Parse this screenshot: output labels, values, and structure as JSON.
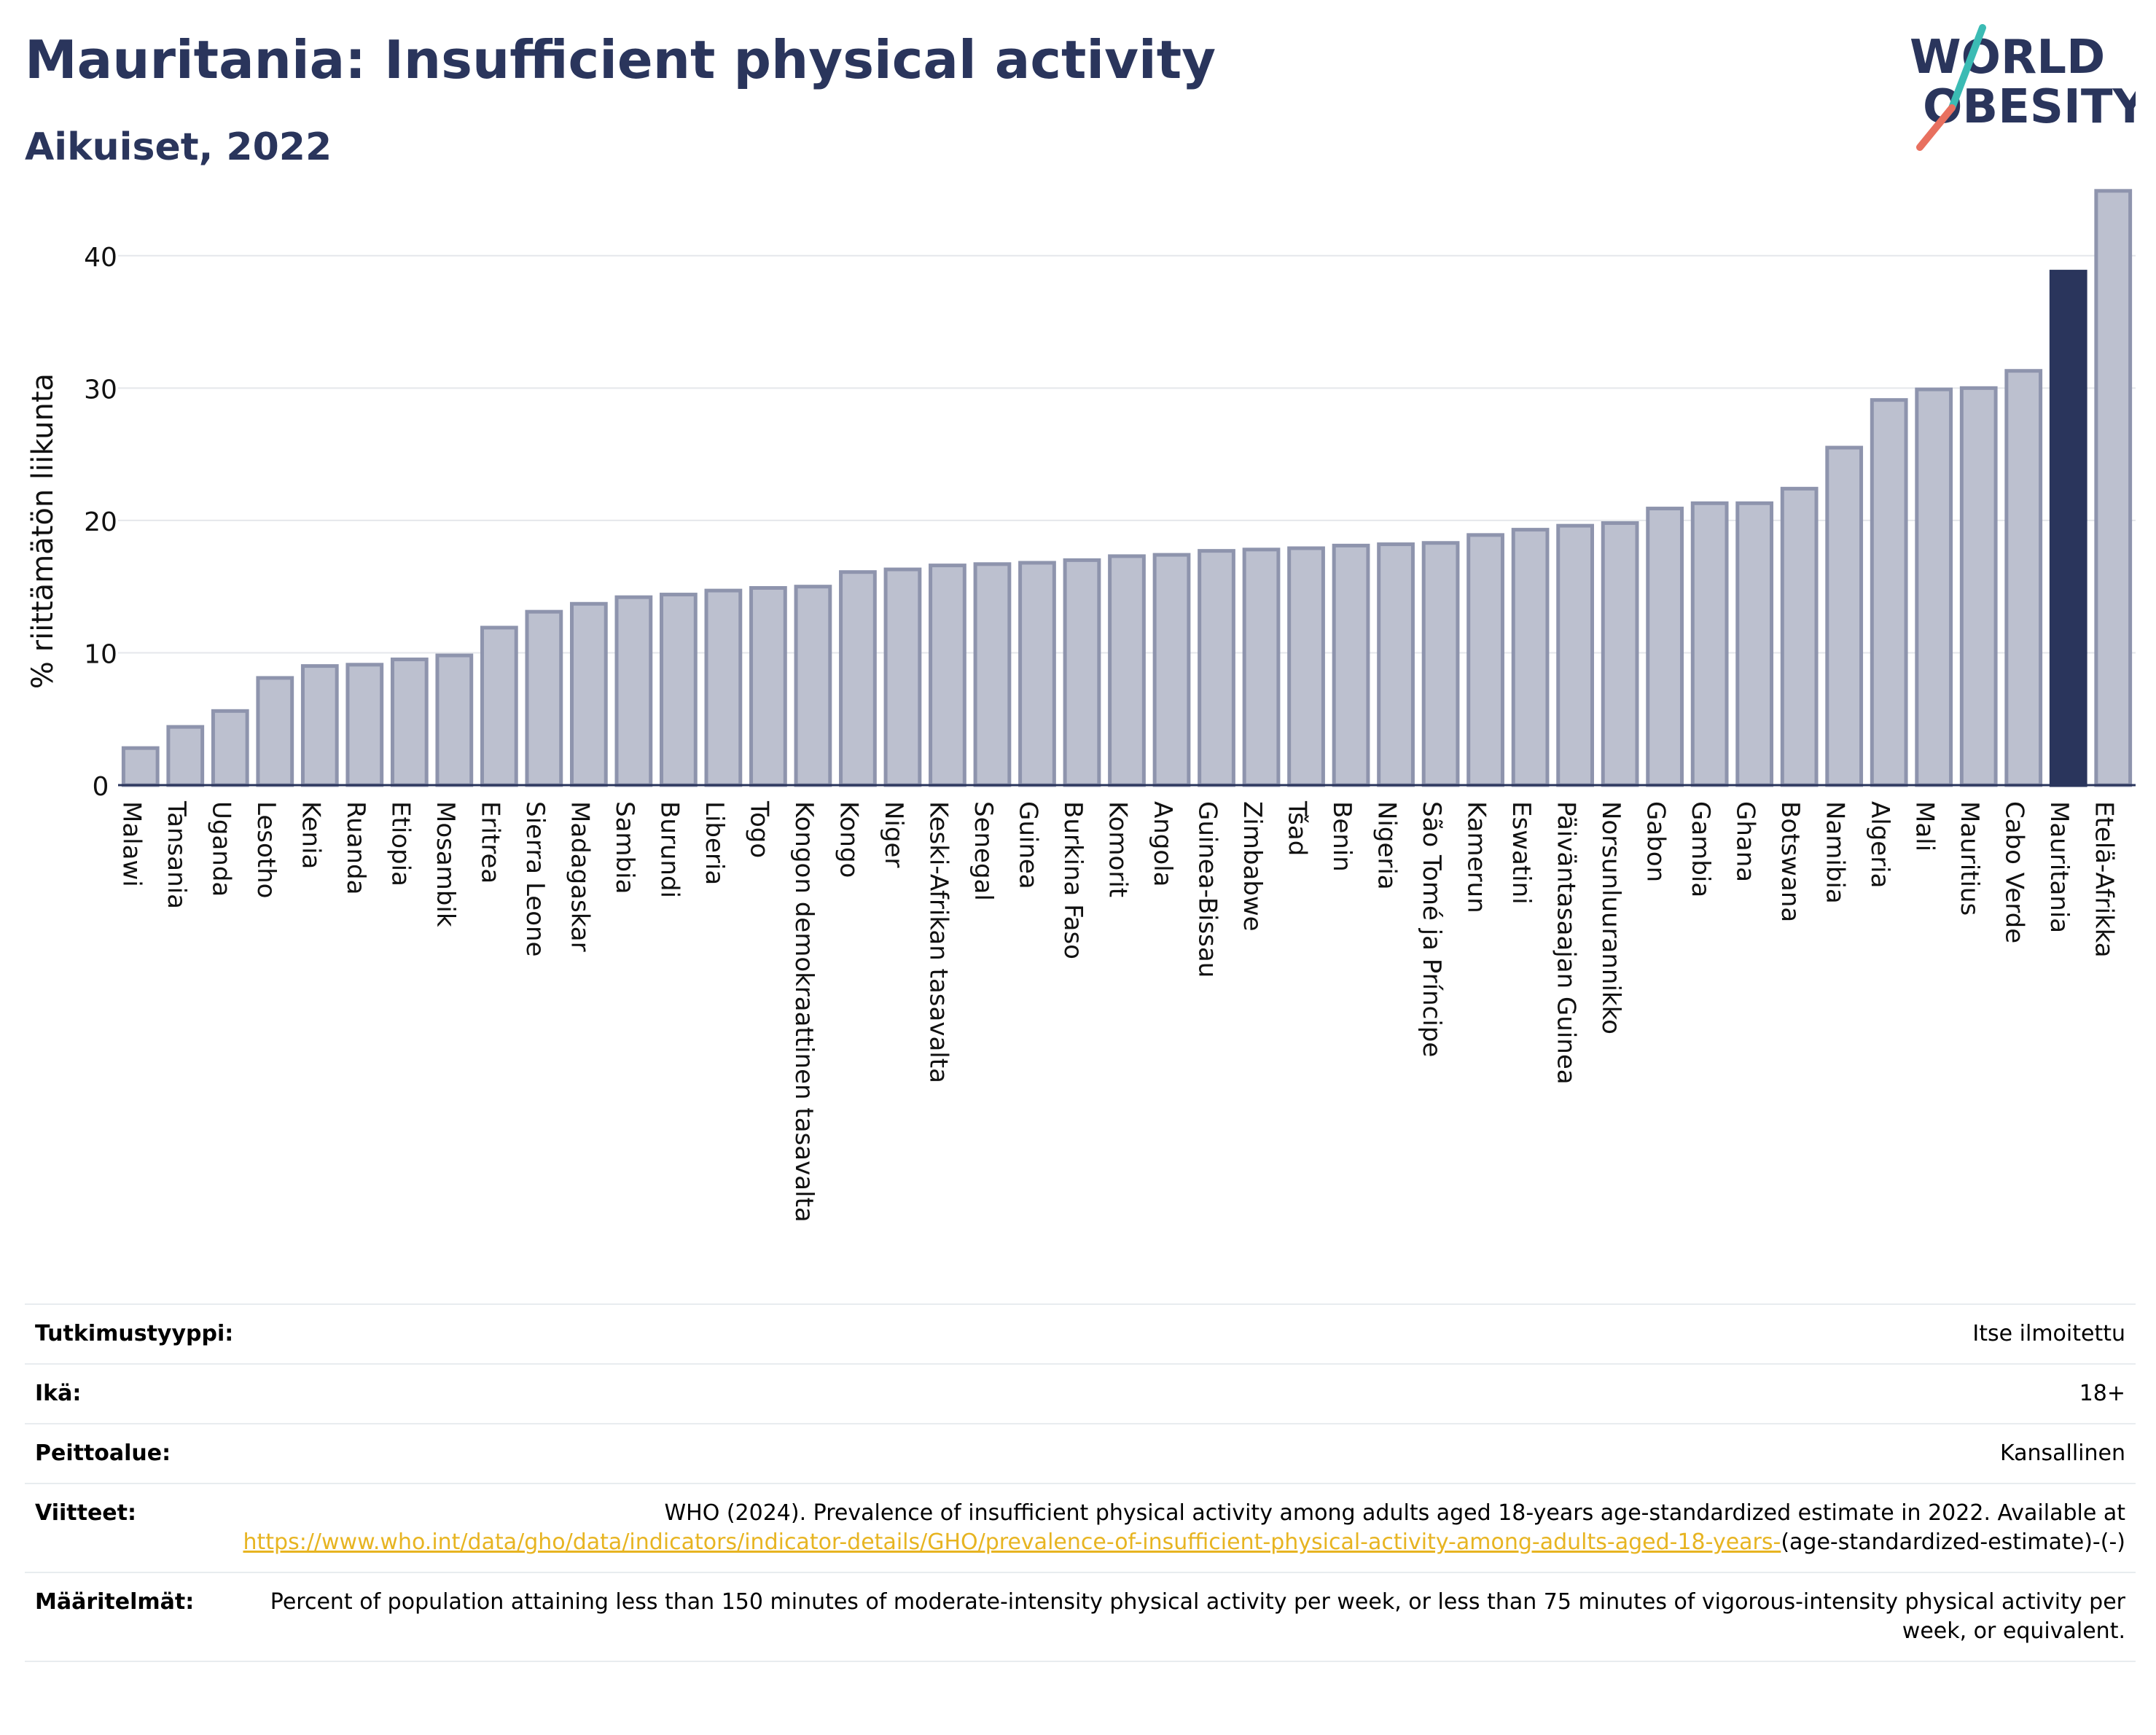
{
  "header": {
    "title": "Mauritania: Insufficient physical activity",
    "subtitle": "Aikuiset, 2022"
  },
  "logo": {
    "line1": "WORLD",
    "line2": "OBESITY"
  },
  "colors": {
    "bar": "#bcc0cf",
    "bar_border": "#8e94ad",
    "highlight": "#2a355c",
    "axis": "#2a355c",
    "grid": "#e5e7eb"
  },
  "chart_data": {
    "type": "bar",
    "ylabel": "% riittämätön liikunta",
    "ylim": [
      0,
      45
    ],
    "yticks": [
      0,
      10,
      20,
      30,
      40
    ],
    "grid": true,
    "highlight": "Mauritania",
    "categories": [
      "Malawi",
      "Tansania",
      "Uganda",
      "Lesotho",
      "Kenia",
      "Ruanda",
      "Etiopia",
      "Mosambik",
      "Eritrea",
      "Sierra Leone",
      "Madagaskar",
      "Sambia",
      "Burundi",
      "Liberia",
      "Togo",
      "Kongon demokraattinen tasavalta",
      "Kongo",
      "Niger",
      "Keski-Afrikan tasavalta",
      "Senegal",
      "Guinea",
      "Burkina Faso",
      "Komorit",
      "Angola",
      "Guinea-Bissau",
      "Zimbabwe",
      "Tšad",
      "Benin",
      "Nigeria",
      "São Tomé ja Príncipe",
      "Kamerun",
      "Eswatini",
      "Päiväntasaajan Guinea",
      "Norsunluurannikko",
      "Gabon",
      "Gambia",
      "Ghana",
      "Botswana",
      "Namibia",
      "Algeria",
      "Mali",
      "Mauritius",
      "Cabo Verde",
      "Mauritania",
      "Etelä-Afrikka"
    ],
    "values": [
      2.8,
      4.4,
      5.6,
      8.1,
      9.0,
      9.1,
      9.5,
      9.8,
      11.9,
      13.1,
      13.7,
      14.2,
      14.4,
      14.7,
      14.9,
      15.0,
      16.1,
      16.3,
      16.6,
      16.7,
      16.8,
      17.0,
      17.3,
      17.4,
      17.7,
      17.8,
      17.9,
      18.1,
      18.2,
      18.3,
      18.9,
      19.3,
      19.6,
      19.8,
      20.9,
      21.3,
      21.3,
      22.4,
      25.5,
      29.1,
      29.9,
      30.0,
      31.3,
      38.8,
      44.9
    ]
  },
  "meta": [
    {
      "label": "Tutkimustyyppi:",
      "value": "Itse ilmoitettu"
    },
    {
      "label": "Ikä:",
      "value": "18+"
    },
    {
      "label": "Peittoalue:",
      "value": "Kansallinen"
    },
    {
      "label": "Viitteet:",
      "value_prefix": "WHO (2024). Prevalence of insufficient physical activity among adults aged 18-years age-standardized estimate in 2022. Available at",
      "link": "https://www.who.int/data/gho/data/indicators/indicator-details/GHO/prevalence-of-insufficient-physical-activity-among-adults-aged-18-years-",
      "value_suffix": "(age-standardized-estimate)-(-)"
    },
    {
      "label": "Määritelmät:",
      "value": "Percent of population attaining less than 150 minutes of moderate-intensity physical activity per week, or less than 75 minutes of vigorous-intensity physical activity per week, or equivalent."
    }
  ]
}
